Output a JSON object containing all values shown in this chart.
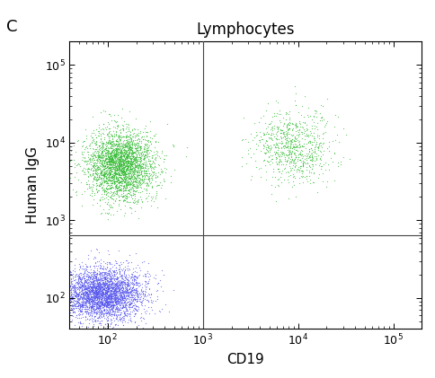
{
  "title": "Lymphocytes",
  "xlabel": "CD19",
  "ylabel": "Human IgG",
  "panel_label": "C",
  "xlim": [
    40,
    200000
  ],
  "ylim": [
    40,
    200000
  ],
  "xline": 1000,
  "yline": 650,
  "green_cluster1": {
    "n": 3000,
    "x_mean": 2.13,
    "x_std": 0.18,
    "y_mean": 3.72,
    "y_std": 0.22,
    "color": "#33bb33",
    "alpha": 0.7,
    "size": 0.8
  },
  "green_cluster2": {
    "n": 800,
    "x_mean": 3.95,
    "x_std": 0.2,
    "y_mean": 3.95,
    "y_std": 0.22,
    "color": "#33bb33",
    "alpha": 0.7,
    "size": 0.8
  },
  "blue_cluster": {
    "n": 3500,
    "x_mean": 1.95,
    "x_std": 0.22,
    "y_mean": 2.05,
    "y_std": 0.17,
    "color": "#5555ee",
    "alpha": 0.7,
    "size": 0.8
  },
  "background_color": "#ffffff",
  "fig_width": 4.84,
  "fig_height": 4.21,
  "dpi": 100
}
